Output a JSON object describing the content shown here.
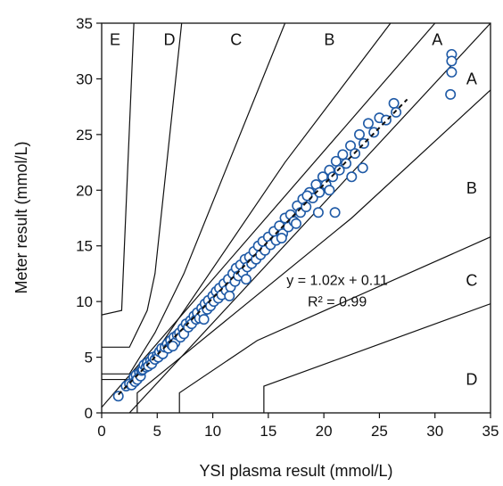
{
  "chart_data": {
    "type": "scatter",
    "title": "",
    "xlabel": "YSI plasma result (mmol/L)",
    "ylabel": "Meter result (mmol/L)",
    "xlim": [
      0,
      35
    ],
    "ylim": [
      0,
      35
    ],
    "xticks": [
      "0",
      "5",
      "10",
      "15",
      "20",
      "25",
      "30",
      "35"
    ],
    "yticks": [
      "0",
      "5",
      "10",
      "15",
      "20",
      "25",
      "30",
      "35"
    ],
    "grid": false,
    "colors": {
      "point": "#1f5aa6",
      "zone_line": "#111111",
      "fit_line": "#111111"
    },
    "zone_labels": [
      {
        "text": "E",
        "x": 1.2,
        "y": 33.5
      },
      {
        "text": "D",
        "x": 6.1,
        "y": 33.5
      },
      {
        "text": "C",
        "x": 12.1,
        "y": 33.5
      },
      {
        "text": "B",
        "x": 20.5,
        "y": 33.5
      },
      {
        "text": "A",
        "x": 30.2,
        "y": 33.5
      },
      {
        "text": "A",
        "x": 33.3,
        "y": 30.0
      },
      {
        "text": "B",
        "x": 33.3,
        "y": 20.2
      },
      {
        "text": "C",
        "x": 33.3,
        "y": 11.9
      },
      {
        "text": "D",
        "x": 33.3,
        "y": 3.0
      }
    ],
    "zone_boundaries": [
      {
        "name": "A-upper",
        "points": [
          [
            0,
            0
          ],
          [
            35,
            35
          ]
        ],
        "shape": [
          [
            0,
            0.5
          ],
          [
            30,
            35
          ]
        ]
      },
      {
        "name": "A-lower",
        "points": [
          [
            0,
            0
          ],
          [
            35,
            35
          ]
        ],
        "shape": [
          [
            2.5,
            0
          ],
          [
            35,
            35
          ]
        ]
      },
      {
        "name": "B-upper",
        "points": [
          [
            0,
            3.0
          ],
          [
            3.2,
            3.0
          ],
          [
            16.5,
            22.5
          ],
          [
            26,
            35
          ]
        ]
      },
      {
        "name": "B-lower",
        "points": [
          [
            3.2,
            0
          ],
          [
            3.2,
            1.8
          ],
          [
            22.5,
            17.5
          ],
          [
            35,
            29
          ]
        ]
      },
      {
        "name": "C-upper",
        "points": [
          [
            0,
            3.5
          ],
          [
            2.5,
            3.5
          ],
          [
            4.8,
            7.2
          ],
          [
            7.4,
            12.5
          ],
          [
            16.5,
            35
          ]
        ]
      },
      {
        "name": "C-lower",
        "points": [
          [
            7,
            0
          ],
          [
            7,
            1.8
          ],
          [
            14,
            6.5
          ],
          [
            35,
            15.8
          ]
        ]
      },
      {
        "name": "D-upper",
        "points": [
          [
            0,
            5.9
          ],
          [
            2.5,
            5.9
          ],
          [
            4.1,
            9.2
          ],
          [
            4.8,
            12.5
          ],
          [
            7.2,
            35
          ]
        ]
      },
      {
        "name": "D-lower",
        "points": [
          [
            14.6,
            0
          ],
          [
            14.6,
            2.4
          ],
          [
            35,
            9.8
          ]
        ]
      },
      {
        "name": "E-upper",
        "points": [
          [
            0,
            8.8
          ],
          [
            1.8,
            9.2
          ],
          [
            2.9,
            35
          ]
        ]
      }
    ],
    "fit": {
      "equation": "y = 1.02x + 0.11",
      "r2": "R² = 0.99",
      "slope": 1.02,
      "intercept": 0.11,
      "x_range": [
        1.5,
        27.5
      ],
      "label_pos": [
        21.2,
        11.5
      ]
    },
    "points": [
      [
        1.5,
        1.5
      ],
      [
        2.2,
        2.4
      ],
      [
        2.5,
        2.6
      ],
      [
        2.7,
        2.5
      ],
      [
        2.9,
        3.2
      ],
      [
        3.0,
        2.8
      ],
      [
        3.1,
        3.4
      ],
      [
        3.2,
        3.0
      ],
      [
        3.4,
        3.6
      ],
      [
        3.5,
        3.3
      ],
      [
        3.6,
        3.8
      ],
      [
        3.7,
        3.9
      ],
      [
        3.8,
        4.3
      ],
      [
        4.0,
        4.1
      ],
      [
        4.1,
        4.5
      ],
      [
        4.2,
        4.2
      ],
      [
        4.4,
        4.7
      ],
      [
        4.5,
        4.4
      ],
      [
        4.6,
        5.0
      ],
      [
        4.8,
        4.8
      ],
      [
        5.0,
        5.2
      ],
      [
        5.1,
        5.0
      ],
      [
        5.2,
        5.5
      ],
      [
        5.4,
        5.8
      ],
      [
        5.5,
        5.3
      ],
      [
        5.7,
        5.9
      ],
      [
        5.9,
        6.2
      ],
      [
        6.0,
        5.8
      ],
      [
        6.2,
        6.5
      ],
      [
        6.3,
        6.1
      ],
      [
        6.5,
        6.8
      ],
      [
        6.6,
        6.3
      ],
      [
        6.8,
        7.0
      ],
      [
        7.0,
        7.2
      ],
      [
        7.1,
        6.8
      ],
      [
        7.3,
        7.6
      ],
      [
        7.4,
        7.1
      ],
      [
        7.6,
        8.0
      ],
      [
        7.8,
        7.7
      ],
      [
        8.0,
        8.3
      ],
      [
        8.1,
        8.0
      ],
      [
        8.3,
        8.7
      ],
      [
        8.5,
        8.4
      ],
      [
        8.6,
        9.0
      ],
      [
        8.8,
        8.5
      ],
      [
        9.0,
        9.4
      ],
      [
        9.1,
        9.0
      ],
      [
        9.3,
        9.8
      ],
      [
        9.5,
        9.3
      ],
      [
        9.6,
        10.1
      ],
      [
        9.8,
        9.6
      ],
      [
        10.0,
        10.5
      ],
      [
        10.1,
        10.0
      ],
      [
        10.3,
        10.9
      ],
      [
        10.5,
        10.3
      ],
      [
        10.6,
        11.2
      ],
      [
        10.8,
        10.6
      ],
      [
        11.0,
        11.6
      ],
      [
        11.2,
        11.0
      ],
      [
        11.4,
        12.0
      ],
      [
        11.6,
        11.3
      ],
      [
        11.8,
        12.5
      ],
      [
        12.0,
        11.8
      ],
      [
        12.1,
        13.0
      ],
      [
        12.3,
        12.3
      ],
      [
        12.5,
        13.3
      ],
      [
        12.7,
        12.6
      ],
      [
        12.9,
        13.8
      ],
      [
        13.1,
        13.1
      ],
      [
        13.3,
        14.0
      ],
      [
        13.5,
        13.4
      ],
      [
        13.7,
        14.5
      ],
      [
        13.9,
        13.8
      ],
      [
        14.1,
        15.0
      ],
      [
        14.3,
        14.2
      ],
      [
        14.5,
        15.4
      ],
      [
        14.7,
        14.6
      ],
      [
        15.0,
        15.8
      ],
      [
        15.2,
        15.1
      ],
      [
        15.5,
        16.3
      ],
      [
        15.7,
        15.5
      ],
      [
        16.0,
        16.8
      ],
      [
        16.3,
        16.1
      ],
      [
        16.5,
        17.5
      ],
      [
        16.8,
        16.7
      ],
      [
        17.0,
        17.8
      ],
      [
        17.3,
        17.2
      ],
      [
        17.6,
        18.6
      ],
      [
        17.9,
        18.0
      ],
      [
        18.1,
        19.2
      ],
      [
        18.4,
        18.5
      ],
      [
        18.7,
        19.8
      ],
      [
        19.0,
        19.3
      ],
      [
        19.3,
        20.5
      ],
      [
        19.6,
        19.8
      ],
      [
        19.9,
        21.2
      ],
      [
        20.2,
        20.5
      ],
      [
        20.5,
        21.8
      ],
      [
        20.8,
        21.2
      ],
      [
        21.1,
        22.6
      ],
      [
        21.4,
        21.8
      ],
      [
        21.7,
        23.2
      ],
      [
        22.0,
        22.4
      ],
      [
        22.4,
        24.0
      ],
      [
        22.8,
        23.3
      ],
      [
        23.2,
        25.0
      ],
      [
        23.6,
        24.2
      ],
      [
        24.0,
        26.0
      ],
      [
        24.5,
        25.2
      ],
      [
        25.0,
        26.5
      ],
      [
        25.6,
        26.3
      ],
      [
        26.3,
        27.8
      ],
      [
        26.5,
        27.0
      ],
      [
        31.5,
        32.2
      ],
      [
        31.5,
        31.6
      ],
      [
        31.5,
        30.6
      ],
      [
        31.4,
        28.6
      ],
      [
        21.0,
        18.0
      ],
      [
        22.5,
        21.2
      ],
      [
        23.5,
        22.0
      ],
      [
        20.5,
        20.0
      ],
      [
        17.5,
        17.0
      ],
      [
        18.5,
        19.5
      ],
      [
        19.5,
        18.0
      ],
      [
        13.0,
        12.0
      ],
      [
        11.5,
        10.5
      ],
      [
        16.2,
        15.7
      ],
      [
        9.2,
        8.4
      ],
      [
        6.4,
        6.0
      ]
    ]
  }
}
